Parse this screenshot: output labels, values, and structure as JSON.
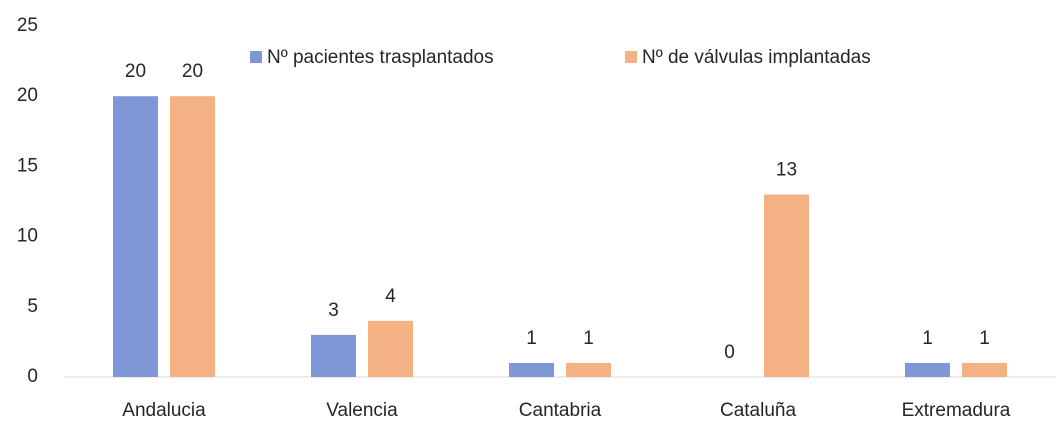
{
  "chart_data": {
    "type": "bar",
    "categories": [
      "Andalucia",
      "Valencia",
      "Cantabria",
      "Cataluña",
      "Extremadura"
    ],
    "series": [
      {
        "name": "Nº pacientes trasplantados",
        "color": "#7f97d6",
        "values": [
          20,
          3,
          1,
          0,
          1
        ]
      },
      {
        "name": "Nº de válvulas implantadas",
        "color": "#f4b183",
        "values": [
          20,
          4,
          1,
          13,
          1
        ]
      }
    ],
    "ylim": [
      0,
      25
    ],
    "yticks": [
      0,
      5,
      10,
      15,
      20,
      25
    ],
    "grid": false,
    "legend": "top"
  }
}
